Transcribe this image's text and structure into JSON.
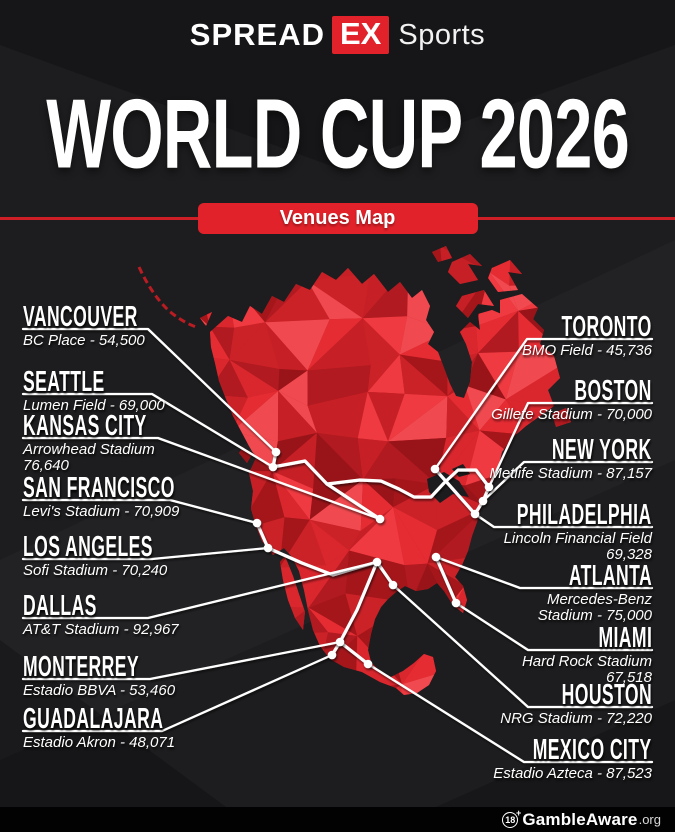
{
  "brand": {
    "spread": "SPREAD",
    "ex": "EX",
    "sports": "Sports"
  },
  "title": "WORLD CUP 2026",
  "badge": "Venues Map",
  "colors": {
    "accent_red": "#e2222a",
    "map_red": "#c11e24",
    "background": "#1d1d1f"
  },
  "venues": {
    "left": [
      {
        "id": "vancouver",
        "city": "VANCOUVER",
        "stadium": "BC Place - 54,500"
      },
      {
        "id": "seattle",
        "city": "SEATTLE",
        "stadium": "Lumen Field - 69,000"
      },
      {
        "id": "kansas-city",
        "city": "KANSAS CITY",
        "stadium": "Arrowhead Stadium\n76,640"
      },
      {
        "id": "san-francisco",
        "city": "SAN FRANCISCO",
        "stadium": "Levi's Stadium - 70,909"
      },
      {
        "id": "los-angeles",
        "city": "LOS ANGELES",
        "stadium": "Sofi Stadium - 70,240"
      },
      {
        "id": "dallas",
        "city": "DALLAS",
        "stadium": "AT&T Stadium - 92,967"
      },
      {
        "id": "monterrey",
        "city": "MONTERREY",
        "stadium": "Estadio BBVA - 53,460"
      },
      {
        "id": "guadalajara",
        "city": "GUADALAJARA",
        "stadium": "Estadio Akron - 48,071"
      }
    ],
    "right": [
      {
        "id": "toronto",
        "city": "TORONTO",
        "stadium": "BMO Field - 45,736"
      },
      {
        "id": "boston",
        "city": "BOSTON",
        "stadium": "Gillete Stadium - 70,000"
      },
      {
        "id": "new-york",
        "city": "NEW YORK",
        "stadium": "Metlife Stadium - 87,157"
      },
      {
        "id": "philadelphia",
        "city": "PHILADELPHIA",
        "stadium": "Lincoln Financial Field\n69,328"
      },
      {
        "id": "atlanta",
        "city": "ATLANTA",
        "stadium": "Mercedes-Benz\nStadium - 75,000"
      },
      {
        "id": "miami",
        "city": "MIAMI",
        "stadium": "Hard Rock Stadium\n67,518"
      },
      {
        "id": "houston",
        "city": "HOUSTON",
        "stadium": "NRG Stadium - 72,220"
      },
      {
        "id": "mexico-city",
        "city": "MEXICO CITY",
        "stadium": "Estadio Azteca - 87,523"
      }
    ]
  },
  "footer": {
    "age": "18",
    "plus": "+",
    "brand": "GambleAware",
    "suffix": ".org"
  }
}
